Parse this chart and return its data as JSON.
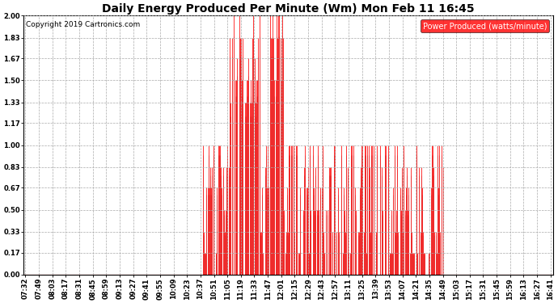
{
  "title": "Daily Energy Produced Per Minute (Wm) Mon Feb 11 16:45",
  "copyright": "Copyright 2019 Cartronics.com",
  "legend_label": "Power Produced (watts/minute)",
  "ylabel_ticks": [
    0.0,
    0.17,
    0.33,
    0.5,
    0.67,
    0.83,
    1.0,
    1.17,
    1.33,
    1.5,
    1.67,
    1.83,
    2.0
  ],
  "ylim": [
    0.0,
    2.0
  ],
  "xtick_labels": [
    "07:32",
    "07:49",
    "08:03",
    "08:17",
    "08:31",
    "08:45",
    "08:59",
    "09:13",
    "09:27",
    "09:41",
    "09:55",
    "10:09",
    "10:23",
    "10:37",
    "10:51",
    "11:05",
    "11:19",
    "11:33",
    "11:47",
    "12:01",
    "12:15",
    "12:29",
    "12:43",
    "12:57",
    "13:11",
    "13:25",
    "13:39",
    "13:53",
    "14:07",
    "14:21",
    "14:35",
    "14:49",
    "15:03",
    "15:17",
    "15:31",
    "15:45",
    "15:59",
    "16:13",
    "16:27",
    "16:41"
  ],
  "bar_color": "#FF0000",
  "shadow_color": "#888888",
  "background_color": "#FFFFFF",
  "plot_bg_color": "#FFFFFF",
  "grid_color": "#AAAAAA",
  "title_fontsize": 10,
  "copyright_fontsize": 6.5,
  "tick_fontsize": 6,
  "legend_bg_color": "#FF0000",
  "legend_text_color": "#FFFFFF",
  "legend_fontsize": 7
}
